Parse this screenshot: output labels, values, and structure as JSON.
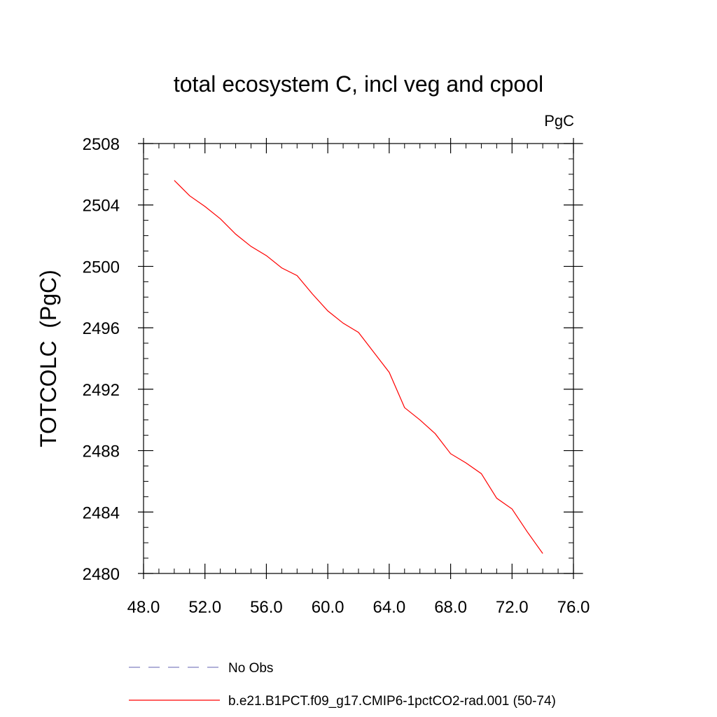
{
  "chart_data": {
    "type": "line",
    "title": "total ecosystem C, incl veg and cpool",
    "units_label": "PgC",
    "xlabel": "",
    "ylabel": "TOTCOLC  (PgC)",
    "xlim": [
      48.0,
      76.0
    ],
    "ylim": [
      2480,
      2508
    ],
    "x_ticks": [
      48.0,
      52.0,
      56.0,
      60.0,
      64.0,
      68.0,
      72.0,
      76.0
    ],
    "x_tick_labels": [
      "48.0",
      "52.0",
      "56.0",
      "60.0",
      "64.0",
      "68.0",
      "72.0",
      "76.0"
    ],
    "y_ticks": [
      2480,
      2484,
      2488,
      2492,
      2496,
      2500,
      2504,
      2508
    ],
    "y_tick_labels": [
      "2480",
      "2484",
      "2488",
      "2492",
      "2496",
      "2500",
      "2504",
      "2508"
    ],
    "x_minor_step": 1.0,
    "y_minor_step": 1.0,
    "grid": false,
    "series": [
      {
        "name": "b.e21.B1PCT.f09_g17.CMIP6-1pctCO2-rad.001 (50-74)",
        "color": "#ff0000",
        "style": "solid",
        "x": [
          50,
          51,
          52,
          53,
          54,
          55,
          56,
          57,
          58,
          59,
          60,
          61,
          62,
          63,
          64,
          65,
          66,
          67,
          68,
          69,
          70,
          71,
          72,
          73,
          74
        ],
        "y": [
          2505.6,
          2504.6,
          2503.9,
          2503.1,
          2502.1,
          2501.3,
          2500.7,
          2499.9,
          2499.4,
          2498.2,
          2497.1,
          2496.3,
          2495.7,
          2494.4,
          2493.1,
          2490.8,
          2490.0,
          2489.1,
          2487.8,
          2487.2,
          2486.5,
          2484.9,
          2484.2,
          2482.7,
          2481.3
        ]
      }
    ],
    "legend": [
      {
        "label": "No Obs",
        "color": "#8080c0",
        "style": "dashed"
      },
      {
        "label": "b.e21.B1PCT.f09_g17.CMIP6-1pctCO2-rad.001 (50-74)",
        "color": "#ff0000",
        "style": "solid"
      }
    ],
    "legend_position": "bottom"
  }
}
